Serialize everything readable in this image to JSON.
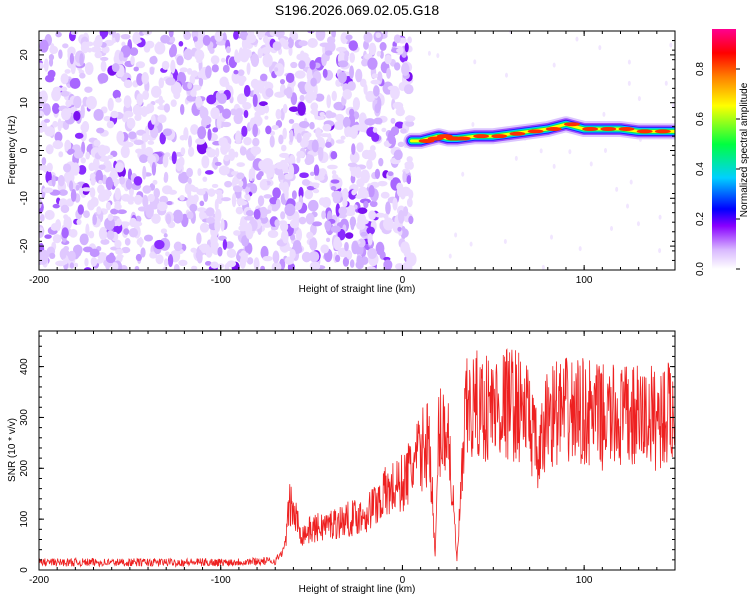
{
  "figure_title": "S196.2026.069.02.05.G18",
  "chart_data": [
    {
      "type": "heatmap",
      "title": "S196.2026.069.02.05.G18",
      "xlabel": "Height of straight line (km)",
      "ylabel": "Frequency (Hz)",
      "xlim": [
        -200,
        150
      ],
      "ylim": [
        -25,
        25
      ],
      "xticks": [
        -200,
        -100,
        0,
        100
      ],
      "yticks": [
        -20,
        -10,
        0,
        10,
        20
      ],
      "xtick_labels": [
        "-200",
        "-100",
        "0",
        "100"
      ],
      "ytick_labels": [
        "-20",
        "-10",
        "0",
        "10",
        "20"
      ],
      "colorbar": {
        "label": "Normalized spectral amplitude",
        "range": [
          0,
          1
        ],
        "ticks": [
          "0.0",
          "0.2",
          "0.4",
          "0.6",
          "0.8"
        ],
        "colors": [
          "#ffffff",
          "#c9a0ff",
          "#8800ff",
          "#0000ff",
          "#00d0ff",
          "#00ff40",
          "#ffff00",
          "#ff8000",
          "#ff0000",
          "#ff00a0"
        ]
      },
      "noise_region_x": [
        -200,
        5
      ],
      "signal_trace": {
        "x": [
          5,
          10,
          15,
          20,
          25,
          30,
          40,
          50,
          60,
          70,
          80,
          90,
          100,
          110,
          120,
          130,
          140,
          150
        ],
        "frequency_hz": [
          2,
          2,
          2.5,
          3,
          2.5,
          2.5,
          3,
          3,
          3.5,
          4,
          4.5,
          5.5,
          4.5,
          4.5,
          4.5,
          4,
          4,
          4
        ]
      }
    },
    {
      "type": "line",
      "xlabel": "Height of straight line (km)",
      "ylabel": "SNR (10 * v/v)",
      "xlim": [
        -200,
        150
      ],
      "ylim": [
        0,
        470
      ],
      "xticks": [
        -200,
        -100,
        0,
        100
      ],
      "yticks": [
        0,
        100,
        200,
        300,
        400
      ],
      "xtick_labels": [
        "-200",
        "-100",
        "0",
        "100"
      ],
      "ytick_labels": [
        "0",
        "100",
        "200",
        "300",
        "400"
      ],
      "color": "#ee2020",
      "series": [
        {
          "name": "SNR",
          "x": [
            -200,
            -150,
            -100,
            -70,
            -65,
            -62,
            -55,
            -50,
            -40,
            -30,
            -20,
            -10,
            0,
            5,
            10,
            15,
            18,
            20,
            25,
            30,
            35,
            40,
            50,
            60,
            65,
            70,
            75,
            80,
            90,
            100,
            110,
            120,
            130,
            140,
            150
          ],
          "y": [
            15,
            15,
            15,
            18,
            40,
            130,
            70,
            80,
            90,
            100,
            110,
            150,
            170,
            200,
            230,
            260,
            20,
            270,
            280,
            20,
            310,
            320,
            320,
            330,
            320,
            300,
            210,
            310,
            310,
            310,
            300,
            300,
            300,
            300,
            310
          ]
        }
      ]
    }
  ]
}
